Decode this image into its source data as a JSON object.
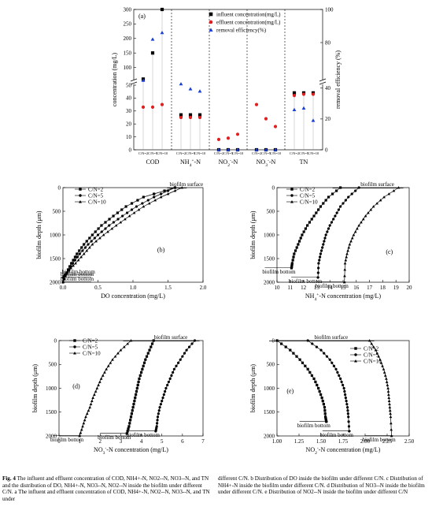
{
  "chart_data": [
    {
      "id": "a",
      "type": "scatter",
      "panel_label": "(a)",
      "ylabel": "concentration (mg/L)",
      "y2label": "removal efficiency (%)",
      "ylim": [
        0,
        300
      ],
      "y2lim": [
        0,
        100
      ],
      "yticks": [
        "0",
        "10",
        "20",
        "30",
        "40",
        "50",
        "100",
        "150",
        "200",
        "250",
        "300"
      ],
      "y2ticks": [
        "0",
        "20",
        "40",
        "80",
        "100"
      ],
      "groups": [
        {
          "label": "COD",
          "sub": [
            "C/N=2",
            "C/N=5",
            "C/N=10"
          ]
        },
        {
          "label": "NH4+-N",
          "sub": [
            "C/N=2",
            "C/N=5",
            "C/N=10"
          ]
        },
        {
          "label": "NO2--N",
          "sub": [
            "C/N=2",
            "C/N=5",
            "C/N=10"
          ]
        },
        {
          "label": "NO3--N",
          "sub": [
            "C/N=2",
            "C/N=5",
            "C/N=10"
          ]
        },
        {
          "label": "TN",
          "sub": [
            "C/N=2",
            "C/N=5",
            "C/N=10"
          ]
        }
      ],
      "legend": [
        "influent concentration(mg/L)",
        "effluent concentration(mg/L)",
        "removal efficiency(%)"
      ],
      "series": [
        {
          "name": "influent concentration(mg/L)",
          "color": "#000000",
          "marker": "square",
          "values": [
            60,
            150,
            300,
            27,
            27,
            27,
            0,
            0,
            0,
            0,
            0,
            0,
            44,
            44,
            44
          ]
        },
        {
          "name": "effluent concentration(mg/L)",
          "color": "#e02020",
          "marker": "circle",
          "values": [
            33,
            33,
            35,
            25,
            25,
            25,
            8,
            9,
            12,
            35,
            24,
            18,
            42,
            43,
            43
          ]
        },
        {
          "name": "removal efficiency(%)",
          "color": "#1a3fd6",
          "marker": "triangle",
          "values": [
            45,
            82,
            86,
            55,
            52,
            38,
            0,
            0,
            0,
            0,
            0,
            0,
            26,
            27,
            19
          ]
        }
      ]
    },
    {
      "id": "b",
      "type": "line",
      "panel_label": "(b)",
      "xlabel": "DO concentration (mg/L)",
      "ylabel": "biofilm depth (μm)",
      "xlim": [
        0,
        2.0
      ],
      "ylim": [
        0,
        2000
      ],
      "xticks": [
        "0.0",
        "0.5",
        "1.0",
        "1.5",
        "2.0"
      ],
      "yticks": [
        "0",
        "500",
        "1000",
        "1500",
        "2000"
      ],
      "legend": [
        "C/N=2",
        "C/N=5",
        "C/N=10"
      ],
      "annotations": [
        "biofilm surface",
        "biofilm bottom",
        "biofilm bottom",
        "biofilm bottom"
      ],
      "series": [
        {
          "name": "C/N=2",
          "marker": "square",
          "x": [
            1.6,
            1.15,
            0.9,
            0.72,
            0.55,
            0.42,
            0.3,
            0.2,
            0.12,
            0.05,
            0.0
          ],
          "y": [
            0,
            200,
            400,
            600,
            800,
            1000,
            1200,
            1400,
            1600,
            1800,
            2000
          ]
        },
        {
          "name": "C/N=5",
          "marker": "circle",
          "x": [
            1.6,
            1.3,
            1.05,
            0.85,
            0.66,
            0.5,
            0.36,
            0.24,
            0.14,
            0.06,
            0.0
          ],
          "y": [
            0,
            200,
            400,
            600,
            800,
            1000,
            1200,
            1400,
            1600,
            1800,
            1900
          ]
        },
        {
          "name": "C/N=10",
          "marker": "triangle",
          "x": [
            1.7,
            1.4,
            1.15,
            0.95,
            0.76,
            0.58,
            0.42,
            0.3,
            0.18,
            0.08,
            0.02
          ],
          "y": [
            0,
            200,
            400,
            600,
            800,
            1000,
            1200,
            1400,
            1600,
            1750,
            1850
          ]
        }
      ]
    },
    {
      "id": "c",
      "type": "line",
      "panel_label": "(c)",
      "xlabel": "NH4+-N concentration (mg/L)",
      "ylabel": "biofilm depth (μm)",
      "xlim": [
        10,
        20
      ],
      "ylim": [
        0,
        2000
      ],
      "xticks": [
        "10",
        "11",
        "12",
        "13",
        "14",
        "15",
        "16",
        "17",
        "18",
        "19",
        "20"
      ],
      "yticks": [
        "0",
        "500",
        "1000",
        "1500",
        "2000"
      ],
      "legend": [
        "C/N=2",
        "C/N=5",
        "C/N=10"
      ],
      "annotations": [
        "biofilm surface",
        "biofilm bottom",
        "biofilm bottom",
        "biofilm bottom"
      ],
      "series": [
        {
          "name": "C/N=2",
          "marker": "square",
          "x": [
            14.8,
            13.9,
            13.3,
            12.8,
            12.3,
            11.9,
            11.6,
            11.3,
            11.15,
            11.1
          ],
          "y": [
            0,
            200,
            400,
            600,
            800,
            1000,
            1200,
            1400,
            1600,
            1700
          ]
        },
        {
          "name": "C/N=5",
          "marker": "circle",
          "x": [
            16.2,
            15.4,
            14.8,
            14.4,
            14.0,
            13.7,
            13.5,
            13.3,
            13.15,
            13.1
          ],
          "y": [
            0,
            200,
            400,
            600,
            800,
            1000,
            1200,
            1400,
            1600,
            1900
          ]
        },
        {
          "name": "C/N=10",
          "marker": "triangle",
          "x": [
            19.2,
            18.1,
            17.3,
            16.7,
            16.2,
            15.8,
            15.5,
            15.3,
            15.15,
            15.1
          ],
          "y": [
            0,
            200,
            400,
            600,
            800,
            1000,
            1200,
            1400,
            1600,
            2000
          ]
        }
      ]
    },
    {
      "id": "d",
      "type": "line",
      "panel_label": "(d)",
      "xlabel": "NO3--N concentration (mg/L)",
      "ylabel": "biofilm depth (μm)",
      "xlim": [
        0,
        7
      ],
      "ylim": [
        0,
        2000
      ],
      "xticks": [
        "0",
        "1",
        "2",
        "3",
        "4",
        "5",
        "6",
        "7"
      ],
      "yticks": [
        "0",
        "500",
        "1000",
        "1500",
        "2000"
      ],
      "legend": [
        "C/N=2",
        "C/N=5",
        "C/N=10"
      ],
      "annotations": [
        "biofilm surface",
        "biofilm bottom",
        "biofilm bottom",
        "biofilm bottom"
      ],
      "series": [
        {
          "name": "C/N=2",
          "marker": "square",
          "x": [
            4.6,
            4.4,
            4.2,
            4.05,
            3.9,
            3.8,
            3.7,
            3.6,
            3.5,
            3.4,
            3.3
          ],
          "y": [
            0,
            200,
            400,
            600,
            800,
            1000,
            1200,
            1400,
            1600,
            1800,
            1950
          ]
        },
        {
          "name": "C/N=5",
          "marker": "circle",
          "x": [
            6.6,
            6.2,
            5.9,
            5.6,
            5.4,
            5.2,
            5.05,
            4.9,
            4.8,
            4.75,
            4.7
          ],
          "y": [
            0,
            200,
            400,
            600,
            800,
            1000,
            1200,
            1400,
            1600,
            1800,
            1900
          ]
        },
        {
          "name": "C/N=10",
          "marker": "triangle",
          "x": [
            3.5,
            3.0,
            2.6,
            2.3,
            2.05,
            1.85,
            1.65,
            1.5,
            1.3,
            1.15,
            1.0
          ],
          "y": [
            0,
            200,
            400,
            600,
            800,
            1000,
            1200,
            1400,
            1600,
            1800,
            2000
          ]
        }
      ]
    },
    {
      "id": "e",
      "type": "line",
      "panel_label": "(e)",
      "xlabel": "NO2--N concentration (mg/L)",
      "ylabel": "biofilm depth (μm)",
      "xlim": [
        1.0,
        2.5
      ],
      "ylim": [
        0,
        2000
      ],
      "xticks": [
        "1.00",
        "1.25",
        "1.50",
        "1.75",
        "2.00",
        "2.25",
        "2.50"
      ],
      "yticks": [
        "0",
        "500",
        "1000",
        "1500",
        "2000"
      ],
      "legend": [
        "C/N=2",
        "C/N=5",
        "C/N=10"
      ],
      "annotations": [
        "biofilm surface",
        "biofilm bottom",
        "biofilm bottom",
        "biofilm bottom"
      ],
      "series": [
        {
          "name": "C/N=2",
          "marker": "square",
          "x": [
            1.0,
            1.15,
            1.26,
            1.35,
            1.42,
            1.47,
            1.51,
            1.54,
            1.55,
            1.56
          ],
          "y": [
            0,
            200,
            400,
            600,
            800,
            1000,
            1200,
            1400,
            1600,
            1700
          ]
        },
        {
          "name": "C/N=5",
          "marker": "circle",
          "x": [
            1.35,
            1.5,
            1.6,
            1.67,
            1.72,
            1.76,
            1.78,
            1.8,
            1.81,
            1.82
          ],
          "y": [
            0,
            200,
            400,
            600,
            800,
            1000,
            1200,
            1400,
            1600,
            1900
          ]
        },
        {
          "name": "C/N=10",
          "marker": "triangle",
          "x": [
            2.05,
            2.12,
            2.17,
            2.21,
            2.24,
            2.26,
            2.27,
            2.28,
            2.29,
            2.3
          ],
          "y": [
            0,
            200,
            400,
            600,
            800,
            1000,
            1200,
            1400,
            1600,
            2000
          ]
        }
      ]
    }
  ],
  "caption": {
    "left_bold": "Fig. 4",
    "left": " The influent and effluent concentration of COD, NH4+-N, NO2--N, NO3--N, and TN and the distribution of DO, NH4+-N, NO3--N, NO2--N inside the biofilm under different C/N. a The influent and effluent concentration of COD, NH4+-N, NO2--N, NO3--N, and TN under",
    "right": "different C/N. b Distribution of DO inside the biofilm under different C/N. c Distribution of NH4+-N inside the biofilm under different C/N. d Distribution of NO3--N inside the biofilm under different C/N. e Distribution of NO2--N inside the biofilm under different C/N"
  }
}
